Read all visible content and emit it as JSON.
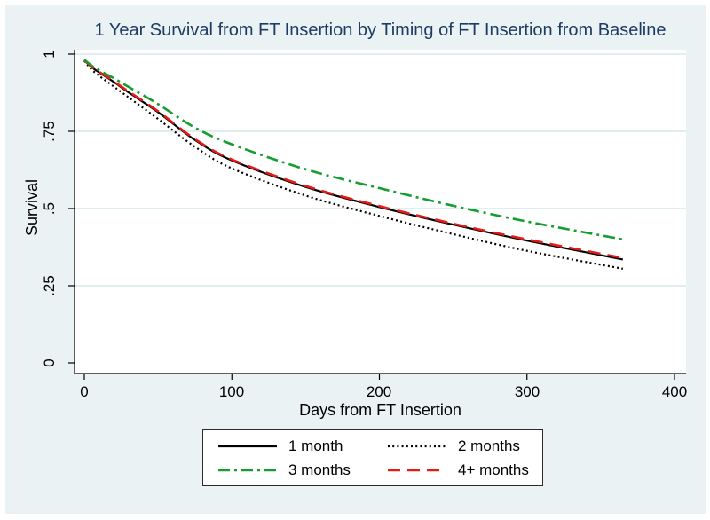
{
  "figure": {
    "title": "1 Year Survival from FT Insertion by Timing of FT Insertion from Baseline",
    "title_color": "#1e3b66",
    "background_color": "#eaf2f3",
    "plot_background": "#ffffff",
    "gridline_color": "#d9e7ea",
    "axis_color": "#000000"
  },
  "axes": {
    "x": {
      "label": "Days from FT Insertion",
      "ticks": [
        "0",
        "100",
        "200",
        "300",
        "400"
      ],
      "tick_values": [
        0,
        100,
        200,
        300,
        400
      ]
    },
    "y": {
      "label": "Survival",
      "ticks": [
        "1",
        ".75",
        ".5",
        ".25",
        "0"
      ],
      "tick_values": [
        1,
        0.75,
        0.5,
        0.25,
        0
      ]
    }
  },
  "legend": {
    "items": [
      {
        "label": "1 month",
        "color": "#000000",
        "line_style": "solid"
      },
      {
        "label": "2 months",
        "color": "#000000",
        "line_style": "dot"
      },
      {
        "label": "3 months",
        "color": "#149e30",
        "line_style": "dash-dot"
      },
      {
        "label": "4+ months",
        "color": "#e41b17",
        "line_style": "dash"
      }
    ]
  },
  "chart_data": {
    "type": "line",
    "title": "1 Year Survival from FT Insertion by Timing of FT Insertion from Baseline",
    "xlabel": "Days from FT Insertion",
    "ylabel": "Survival",
    "xlim": [
      0,
      400
    ],
    "ylim": [
      0,
      1
    ],
    "grid": "horizontal",
    "legend_position": "bottom",
    "x": [
      0,
      5,
      10,
      20,
      30,
      50,
      75,
      100,
      150,
      200,
      250,
      300,
      365
    ],
    "series": [
      {
        "name": "1 month",
        "color": "#000000",
        "line_style": "solid",
        "z": 1,
        "values": [
          0.98,
          0.958,
          0.941,
          0.91,
          0.876,
          0.812,
          0.722,
          0.656,
          0.57,
          0.505,
          0.448,
          0.396,
          0.335
        ]
      },
      {
        "name": "2 months",
        "color": "#000000",
        "line_style": "dot",
        "z": 2,
        "values": [
          0.978,
          0.95,
          0.93,
          0.895,
          0.86,
          0.79,
          0.7,
          0.63,
          0.542,
          0.476,
          0.417,
          0.363,
          0.305
        ]
      },
      {
        "name": "3 months",
        "color": "#149e30",
        "line_style": "dash-dot",
        "z": 4,
        "values": [
          0.982,
          0.963,
          0.948,
          0.922,
          0.894,
          0.838,
          0.762,
          0.708,
          0.627,
          0.566,
          0.509,
          0.458,
          0.4
        ]
      },
      {
        "name": "4+ months",
        "color": "#e41b17",
        "line_style": "dash",
        "z": 3,
        "values": [
          0.98,
          0.959,
          0.943,
          0.912,
          0.879,
          0.815,
          0.725,
          0.659,
          0.573,
          0.508,
          0.451,
          0.4,
          0.34
        ]
      }
    ]
  }
}
